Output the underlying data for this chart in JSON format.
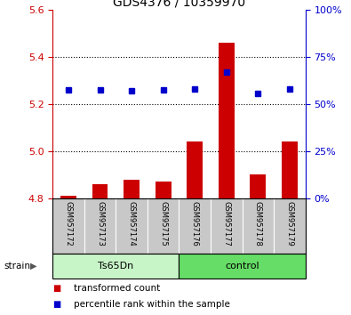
{
  "title": "GDS4376 / 10359970",
  "samples": [
    "GSM957172",
    "GSM957173",
    "GSM957174",
    "GSM957175",
    "GSM957176",
    "GSM957177",
    "GSM957178",
    "GSM957179"
  ],
  "groups": [
    "Ts65Dn",
    "Ts65Dn",
    "Ts65Dn",
    "Ts65Dn",
    "control",
    "control",
    "control",
    "control"
  ],
  "group_labels": [
    "Ts65Dn",
    "control"
  ],
  "group_colors": [
    "#c8f5c8",
    "#66dd66"
  ],
  "transformed_counts": [
    4.81,
    4.86,
    4.88,
    4.87,
    5.04,
    5.46,
    4.9,
    5.04
  ],
  "percentile_ranks": [
    57.5,
    57.5,
    57.0,
    57.5,
    58.0,
    67.0,
    55.5,
    58.0
  ],
  "bar_baseline": 4.8,
  "ylim_left": [
    4.8,
    5.6
  ],
  "ylim_right": [
    0,
    100
  ],
  "yticks_left": [
    4.8,
    5.0,
    5.2,
    5.4,
    5.6
  ],
  "yticks_right": [
    0,
    25,
    50,
    75,
    100
  ],
  "ytick_labels_right": [
    "0%",
    "25%",
    "50%",
    "75%",
    "100%"
  ],
  "left_axis_color": "#cc0000",
  "right_axis_color": "#0000cc",
  "bar_color": "#cc0000",
  "dot_color": "#0000cc",
  "grid_color": "#000000",
  "bg_color": "#ffffff",
  "plot_bg_color": "#ffffff",
  "sample_bg_color": "#c8c8c8",
  "strain_label": "strain",
  "legend_items": [
    "transformed count",
    "percentile rank within the sample"
  ],
  "title_fontsize": 10,
  "tick_fontsize": 8,
  "sample_fontsize": 6,
  "legend_fontsize": 7.5,
  "group_fontsize": 8
}
